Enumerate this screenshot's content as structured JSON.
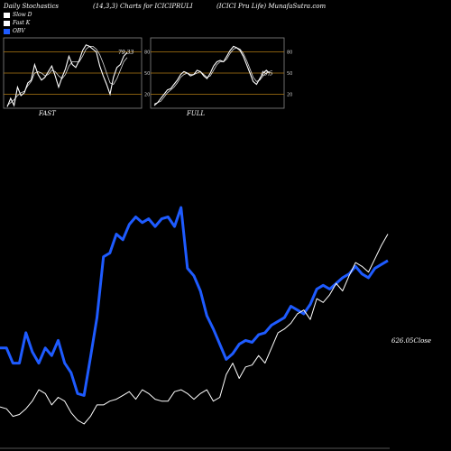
{
  "header": {
    "left": "Daily Stochastics",
    "middle": "(14,3,3) Charts for ICICIPRULI",
    "right": "(ICICI Pru  Life) MunafaSutra.com"
  },
  "legend": [
    {
      "label": "Slow  D",
      "color": "#ffffff"
    },
    {
      "label": "Fast K",
      "color": "#ffffff"
    },
    {
      "label": "OBV",
      "color": "#1e5bff"
    }
  ],
  "colors": {
    "obv": "#1e5bff",
    "price": "#ffffff",
    "levels": "#b07a14",
    "stoch": "#ffffff"
  },
  "chart_data": [
    {
      "type": "line",
      "title": "FAST",
      "ylim": [
        0,
        100
      ],
      "yticks": [
        20,
        50,
        80
      ],
      "last_value_label": "79.33",
      "series": [
        {
          "name": "Fast K",
          "values": [
            2,
            14,
            4,
            30,
            18,
            22,
            36,
            40,
            62,
            48,
            40,
            44,
            52,
            60,
            46,
            30,
            44,
            56,
            74,
            62,
            58,
            68,
            82,
            90,
            88,
            84,
            80,
            60,
            46,
            34,
            20,
            44,
            58,
            62,
            74,
            79.33
          ]
        },
        {
          "name": "Slow  D",
          "values": [
            4,
            8,
            12,
            18,
            22,
            24,
            32,
            38,
            50,
            52,
            50,
            46,
            48,
            54,
            52,
            46,
            42,
            48,
            60,
            66,
            66,
            66,
            74,
            84,
            88,
            88,
            84,
            76,
            64,
            50,
            36,
            34,
            42,
            54,
            66,
            72
          ]
        }
      ]
    },
    {
      "type": "line",
      "title": "FULL",
      "ylim": [
        0,
        100
      ],
      "yticks": [
        20,
        50,
        80
      ],
      "last_value_label": "49.5",
      "series": [
        {
          "name": "Full K",
          "values": [
            4,
            8,
            14,
            20,
            26,
            28,
            34,
            40,
            48,
            52,
            50,
            46,
            48,
            54,
            52,
            46,
            42,
            50,
            60,
            66,
            68,
            66,
            74,
            82,
            88,
            86,
            82,
            74,
            62,
            50,
            38,
            34,
            42,
            50,
            54,
            49.5
          ]
        },
        {
          "name": "Full D",
          "values": [
            6,
            8,
            10,
            16,
            22,
            26,
            30,
            36,
            44,
            48,
            50,
            48,
            48,
            50,
            52,
            48,
            44,
            46,
            54,
            62,
            66,
            66,
            70,
            78,
            84,
            86,
            84,
            78,
            68,
            56,
            44,
            38,
            40,
            46,
            50,
            52
          ]
        }
      ]
    },
    {
      "type": "line",
      "title": "",
      "last_value_label": "626.05",
      "last_value_suffix": "Close",
      "series": [
        {
          "name": "OBV",
          "values": [
            0.4,
            0.4,
            0.32,
            0.32,
            0.48,
            0.38,
            0.32,
            0.4,
            0.36,
            0.44,
            0.32,
            0.27,
            0.16,
            0.15,
            0.35,
            0.56,
            0.88,
            0.9,
            1.0,
            0.97,
            1.05,
            1.09,
            1.06,
            1.08,
            1.04,
            1.08,
            1.09,
            1.04,
            1.14,
            0.82,
            0.78,
            0.7,
            0.57,
            0.5,
            0.42,
            0.34,
            0.37,
            0.42,
            0.44,
            0.43,
            0.47,
            0.48,
            0.52,
            0.54,
            0.56,
            0.62,
            0.6,
            0.58,
            0.63,
            0.71,
            0.73,
            0.71,
            0.74,
            0.77,
            0.79,
            0.83,
            0.79,
            0.77,
            0.82,
            0.84,
            0.86
          ]
        },
        {
          "name": "Close",
          "values": [
            0.09,
            0.08,
            0.04,
            0.05,
            0.08,
            0.12,
            0.18,
            0.16,
            0.1,
            0.14,
            0.12,
            0.06,
            0.02,
            0.0,
            0.04,
            0.1,
            0.1,
            0.12,
            0.13,
            0.15,
            0.17,
            0.13,
            0.18,
            0.16,
            0.13,
            0.12,
            0.12,
            0.17,
            0.18,
            0.16,
            0.13,
            0.16,
            0.18,
            0.12,
            0.14,
            0.26,
            0.32,
            0.24,
            0.3,
            0.31,
            0.36,
            0.32,
            0.4,
            0.48,
            0.5,
            0.53,
            0.58,
            0.6,
            0.55,
            0.66,
            0.64,
            0.68,
            0.74,
            0.7,
            0.78,
            0.85,
            0.83,
            0.8,
            0.87,
            0.94,
            1.0
          ]
        }
      ]
    }
  ]
}
